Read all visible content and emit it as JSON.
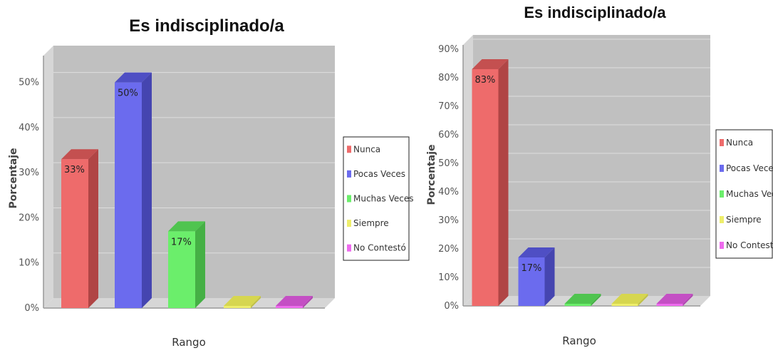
{
  "chart_data": [
    {
      "type": "bar",
      "title": "Es indisciplinado/a",
      "xlabel": "Rango",
      "ylabel": "Porcentaje",
      "ylim": [
        0,
        55
      ],
      "yticks": [
        0,
        10,
        20,
        30,
        40,
        50
      ],
      "ytick_labels": [
        "0%",
        "10%",
        "20%",
        "30%",
        "40%",
        "50%"
      ],
      "categories": [
        "Nunca",
        "Pocas Veces",
        "Muchas Veces",
        "Siempre",
        "No Contestó"
      ],
      "values": [
        33,
        50,
        17,
        0,
        0
      ],
      "data_labels": [
        "33%",
        "50%",
        "17%",
        "",
        ""
      ],
      "legend_position": "right",
      "grid": true
    },
    {
      "type": "bar",
      "title": "Es indisciplinado/a",
      "xlabel": "Rango",
      "ylabel": "Porcentaje",
      "ylim": [
        0,
        90
      ],
      "yticks": [
        0,
        10,
        20,
        30,
        40,
        50,
        60,
        70,
        80,
        90
      ],
      "ytick_labels": [
        "0%",
        "10%",
        "20%",
        "30%",
        "40%",
        "50%",
        "60%",
        "70%",
        "80%",
        "90%"
      ],
      "categories": [
        "Nunca",
        "Pocas Veces",
        "Muchas Veces",
        "Siempre",
        "No Contestó"
      ],
      "values": [
        83,
        17,
        0,
        0,
        0
      ],
      "data_labels": [
        "83%",
        "17%",
        "",
        "",
        ""
      ],
      "legend_position": "right",
      "grid": true
    }
  ],
  "colors": {
    "front": [
      "#ee6b6b",
      "#6b6bee",
      "#6bee6b",
      "#eeee6b",
      "#ee6bee"
    ],
    "top": [
      "#c45050",
      "#4f4fc4",
      "#4fc44f",
      "#d6d64f",
      "#c44fc4"
    ],
    "side": [
      "#b04545",
      "#4545b0",
      "#45b045",
      "#c0c045",
      "#b045b0"
    ],
    "plot_bg": "#c0c0c0",
    "plot_wall": "#d6d6d6",
    "grid": "#dedede"
  }
}
